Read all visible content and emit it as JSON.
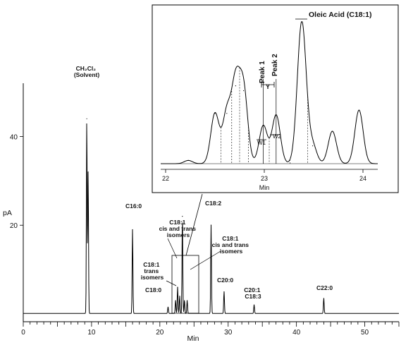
{
  "chart_data": [
    {
      "type": "line",
      "xlabel": "Min",
      "ylabel": "pA",
      "xlim": [
        0,
        55
      ],
      "ylim": [
        0,
        52
      ],
      "x_ticks": [
        0,
        10,
        20,
        30,
        40,
        50
      ],
      "y_ticks": [
        20,
        40
      ],
      "series": [
        {
          "peaks": [
            {
              "rt": 9.3,
              "height": 44
            },
            {
              "rt": 9.5,
              "height": 32
            },
            {
              "rt": 16.0,
              "height": 19
            },
            {
              "rt": 21.2,
              "height": 1.5
            },
            {
              "rt": 22.3,
              "height": 3
            },
            {
              "rt": 22.6,
              "height": 6
            },
            {
              "rt": 22.9,
              "height": 4
            },
            {
              "rt": 23.3,
              "height": 22
            },
            {
              "rt": 23.6,
              "height": 3
            },
            {
              "rt": 24.0,
              "height": 3
            },
            {
              "rt": 27.5,
              "height": 20
            },
            {
              "rt": 29.4,
              "height": 5
            },
            {
              "rt": 33.8,
              "height": 2
            },
            {
              "rt": 44.0,
              "height": 3.5
            }
          ]
        }
      ],
      "annotations": [
        {
          "text": [
            "CH₂Cl₂",
            "(Solvent)"
          ]
        },
        {
          "text": [
            "C16:0"
          ]
        },
        {
          "text": [
            "C18:1",
            "cis and trans",
            "isomers"
          ]
        },
        {
          "text": [
            "C18:2"
          ]
        },
        {
          "text": [
            "C18:1",
            "cis and trans",
            "isomers"
          ]
        },
        {
          "text": [
            "C18:1",
            "trans",
            "isomers"
          ]
        },
        {
          "text": [
            "C18:0"
          ]
        },
        {
          "text": [
            "C20:0"
          ]
        },
        {
          "text": [
            "C20:1",
            "C18:3"
          ]
        },
        {
          "text": [
            "C22:0"
          ]
        }
      ]
    },
    {
      "type": "line",
      "xlabel": "Min",
      "xlim": [
        21.95,
        24.15
      ],
      "x_ticks": [
        22,
        23,
        24
      ],
      "series": [
        {
          "peaks": [
            {
              "rt": 22.23,
              "height": 0.04
            },
            {
              "rt": 22.5,
              "height": 0.62
            },
            {
              "rt": 22.62,
              "height": 0.62
            },
            {
              "rt": 22.71,
              "height": 0.96
            },
            {
              "rt": 22.79,
              "height": 0.9
            },
            {
              "rt": 22.99,
              "height": 0.47
            },
            {
              "rt": 23.12,
              "height": 0.6
            },
            {
              "rt": 23.38,
              "height": 1.75
            },
            {
              "rt": 23.49,
              "height": 0.22
            },
            {
              "rt": 23.69,
              "height": 0.4
            },
            {
              "rt": 23.96,
              "height": 0.66
            }
          ]
        }
      ],
      "annotations": [
        {
          "text": "Oleic Acid (C18:1)"
        },
        {
          "text": "Peak 1"
        },
        {
          "text": "Peak 2"
        },
        {
          "text": "Y"
        },
        {
          "text": "W1"
        },
        {
          "text": "W2"
        }
      ]
    }
  ]
}
